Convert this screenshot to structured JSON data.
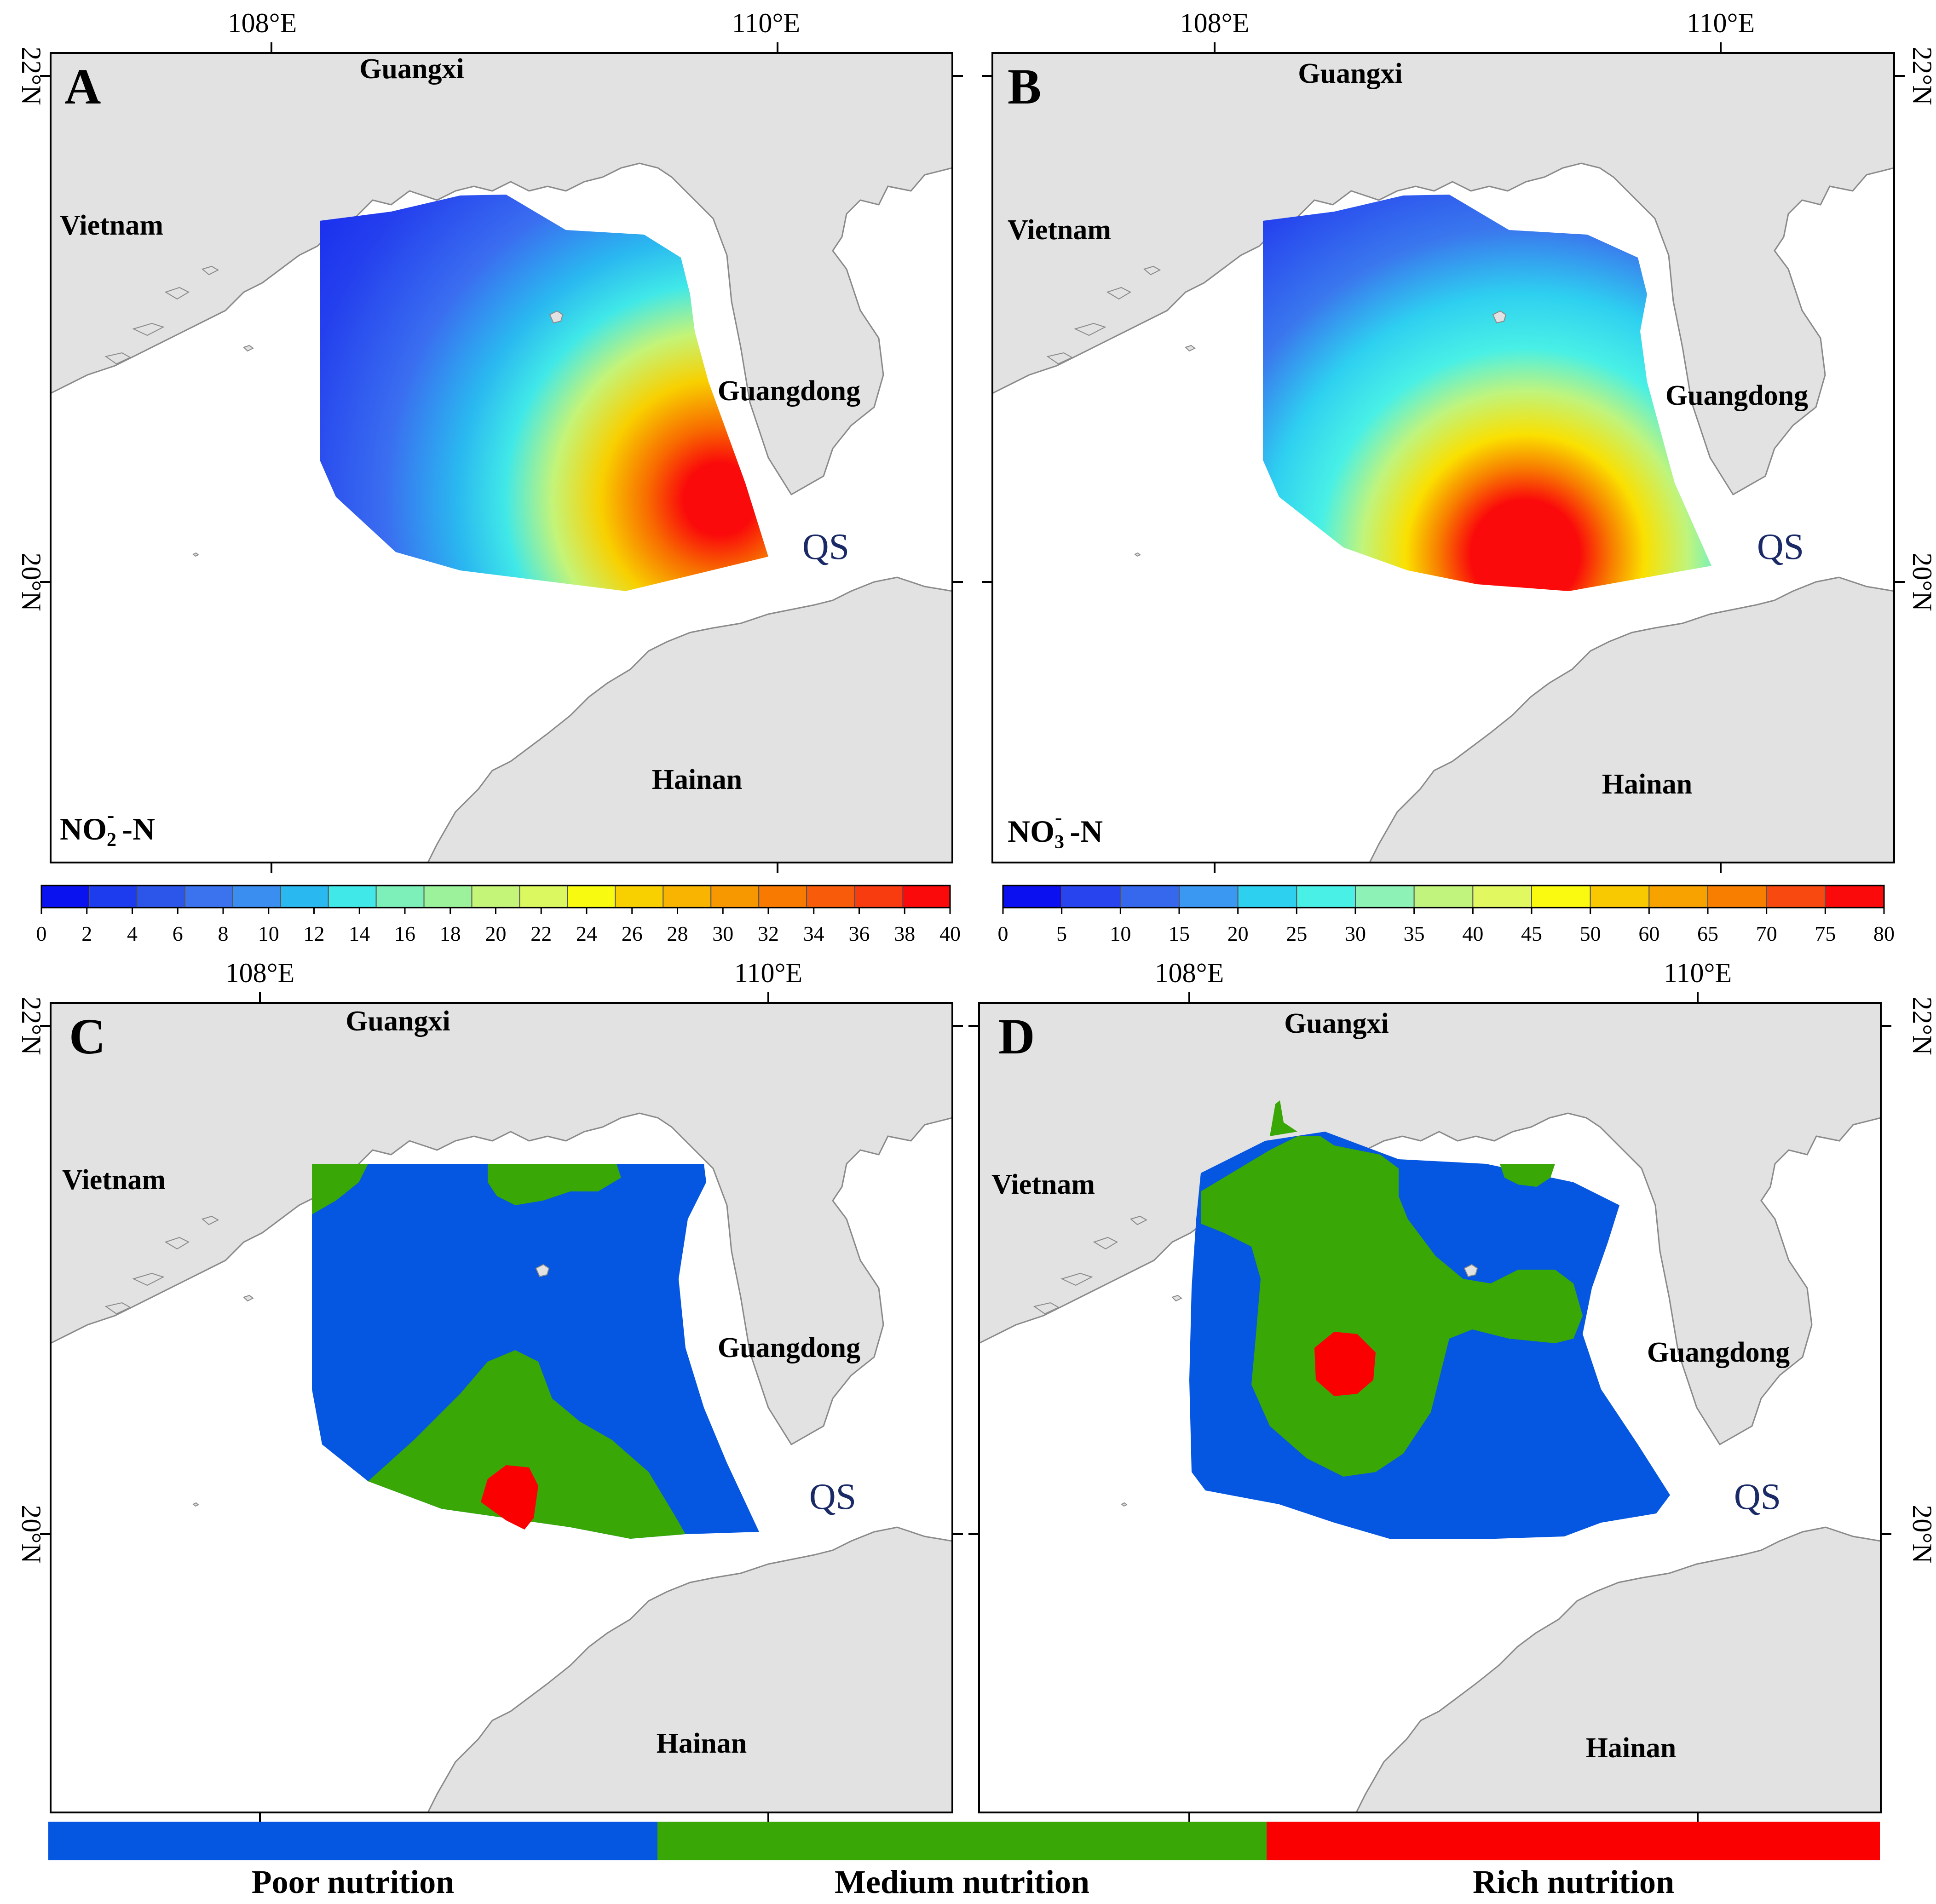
{
  "panels": {
    "A": {
      "letter": "A",
      "top_lon_labels": [
        "108°E",
        "110°E"
      ],
      "lat_labels": [
        "22°N",
        "20°N"
      ],
      "places": {
        "guangxi": "Guangxi",
        "vietnam": "Vietnam",
        "guangdong": "Guangdong",
        "hainan": "Hainan",
        "qs": "QS"
      },
      "variable": {
        "main": "NO",
        "sub": "2",
        "sup": "-",
        "suffix": " -N"
      }
    },
    "B": {
      "letter": "B",
      "top_lon_labels": [
        "108°E",
        "110°E"
      ],
      "lat_labels": [
        "22°N",
        "20°N"
      ],
      "places": {
        "guangxi": "Guangxi",
        "vietnam": "Vietnam",
        "guangdong": "Guangdong",
        "hainan": "Hainan",
        "qs": "QS"
      },
      "variable": {
        "main": "NO",
        "sub": "3",
        "sup": "-",
        "suffix": " -N"
      }
    },
    "C": {
      "letter": "C",
      "top_lon_labels": [
        "108°E",
        "110°E"
      ],
      "lat_labels": [
        "22°N",
        "20°N"
      ],
      "places": {
        "guangxi": "Guangxi",
        "vietnam": "Vietnam",
        "guangdong": "Guangdong",
        "hainan": "Hainan",
        "qs": "QS"
      }
    },
    "D": {
      "letter": "D",
      "top_lon_labels": [
        "108°E",
        "110°E"
      ],
      "lat_labels": [
        "22°N",
        "20°N"
      ],
      "places": {
        "guangxi": "Guangxi",
        "vietnam": "Vietnam",
        "guangdong": "Guangdong",
        "hainan": "Hainan",
        "qs": "QS"
      }
    }
  },
  "colorbar_A": {
    "ticks": [
      "0",
      "2",
      "4",
      "6",
      "8",
      "10",
      "12",
      "14",
      "16",
      "18",
      "20",
      "22",
      "24",
      "26",
      "28",
      "30",
      "32",
      "34",
      "36",
      "38",
      "40"
    ],
    "colors": [
      "#0a12f0",
      "#1c3cee",
      "#2c56ea",
      "#3b72ee",
      "#3a8ef0",
      "#2ab8f0",
      "#40e8e8",
      "#7cf0b8",
      "#9cf29a",
      "#c4f478",
      "#dcf860",
      "#f8fa10",
      "#f8d000",
      "#f8b400",
      "#f89800",
      "#f87a00",
      "#f85c0a",
      "#f83c10",
      "#fa0a0a"
    ]
  },
  "colorbar_B": {
    "ticks": [
      "0",
      "5",
      "10",
      "15",
      "20",
      "25",
      "30",
      "35",
      "40",
      "45",
      "50",
      "60",
      "65",
      "70",
      "75",
      "80"
    ],
    "colors": [
      "#0a10f0",
      "#2844ee",
      "#3668ee",
      "#3a98f2",
      "#2ed0f0",
      "#48f0e6",
      "#8cf2b6",
      "#c0f47c",
      "#e2f860",
      "#fafa10",
      "#f8c800",
      "#f8a200",
      "#f87e00",
      "#f84a10",
      "#fa0a0a"
    ]
  },
  "legend": {
    "items": [
      {
        "label": "Poor nutrition",
        "color": "#0556e0"
      },
      {
        "label": "Medium nutrition",
        "color": "#39a706"
      },
      {
        "label": "Rich nutrition",
        "color": "#fa0000"
      }
    ]
  },
  "colors": {
    "land": "#e2e2e2",
    "coast": "#8a8a8a",
    "sea": "#ffffff",
    "qs": "#1a2a66",
    "frame": "#000000"
  }
}
